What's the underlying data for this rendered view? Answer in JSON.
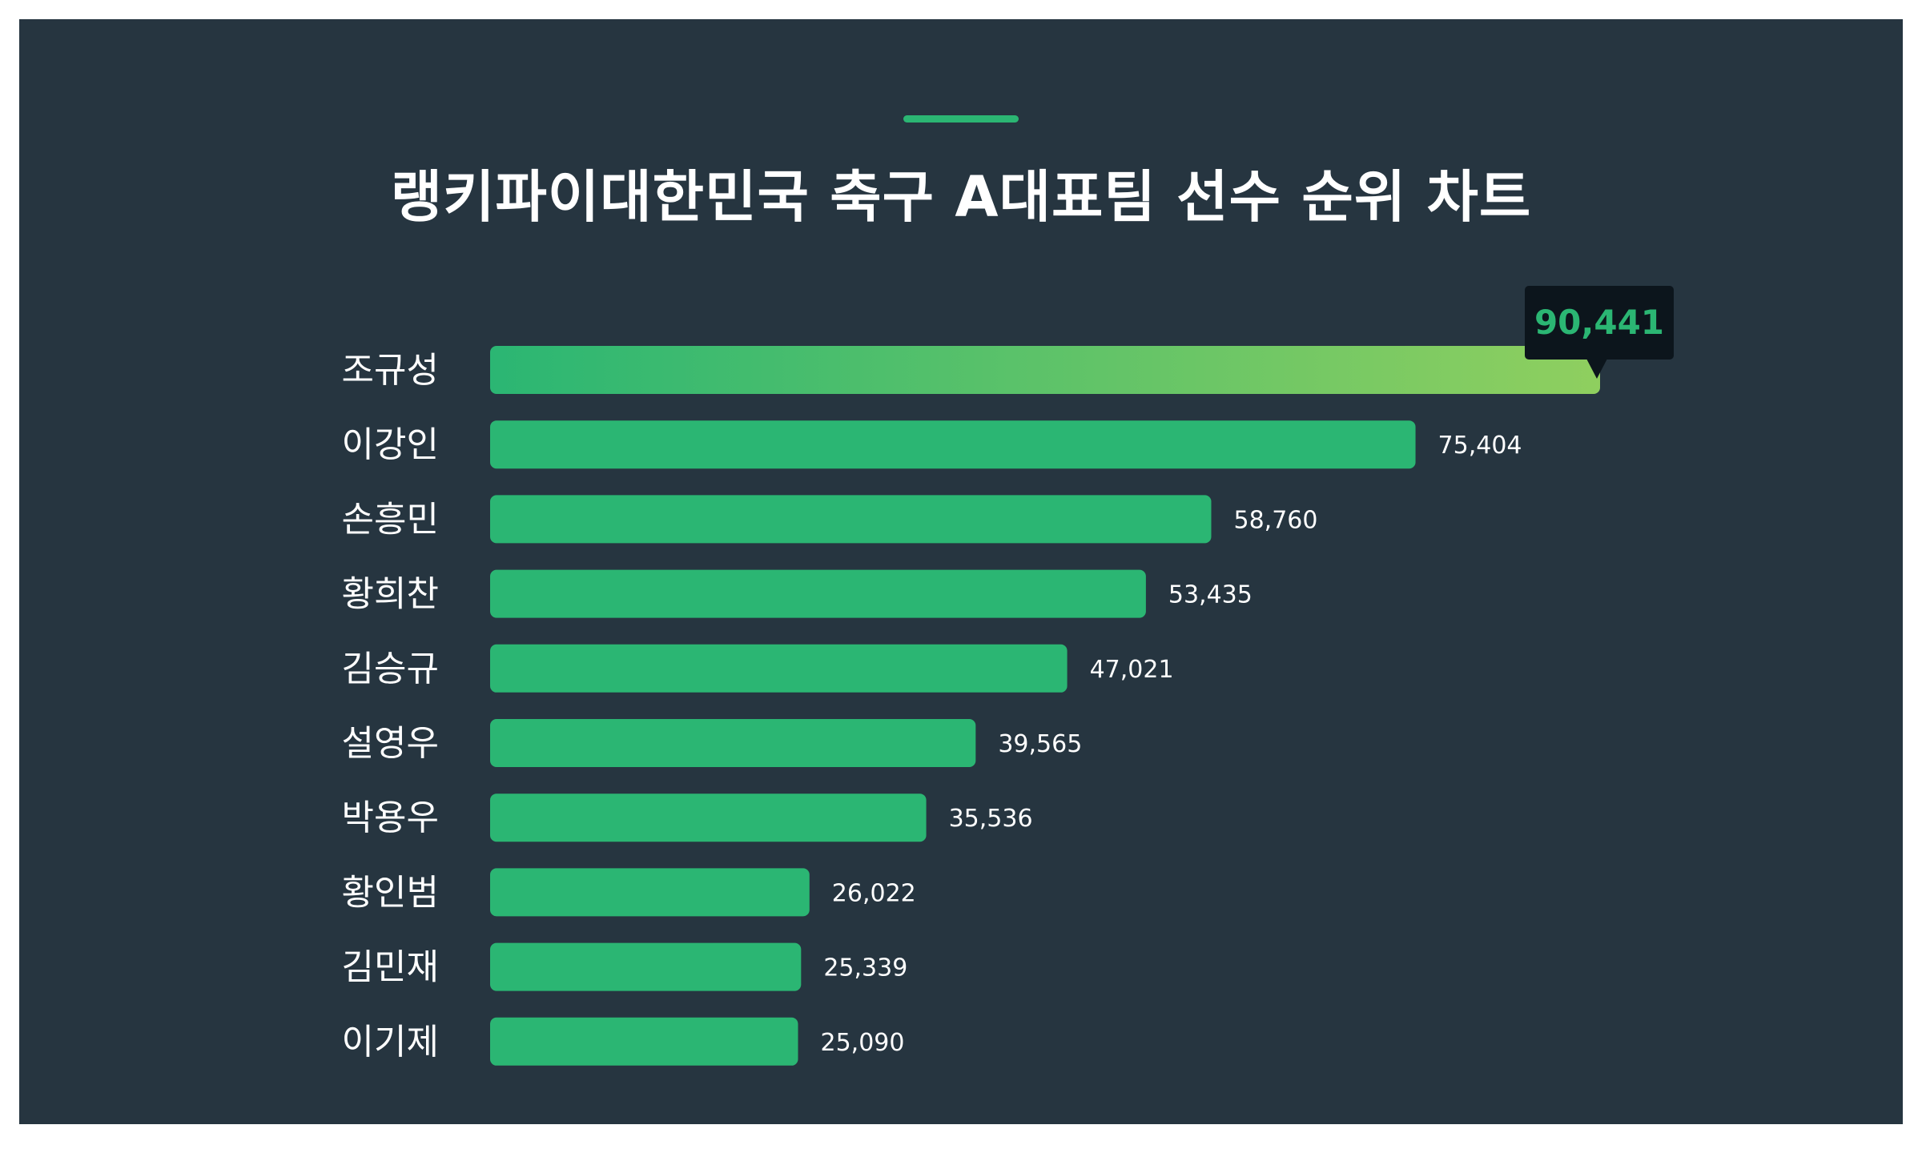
{
  "title": "랭키파이대한민국 축구 A대표팀 선수 순위 차트",
  "colors": {
    "background": "#263540",
    "bar": "#2bb673",
    "top_bar_gradient_start": "#2bb673",
    "top_bar_gradient_end": "#8fcf5f",
    "tooltip_bg": "#0c151c",
    "accent": "#2bb673"
  },
  "chart_data": {
    "type": "bar",
    "orientation": "horizontal",
    "categories": [
      "조규성",
      "이강인",
      "손흥민",
      "황희찬",
      "김승규",
      "설영우",
      "박용우",
      "황인범",
      "김민재",
      "이기제"
    ],
    "values": [
      90441,
      75404,
      58760,
      53435,
      47021,
      39565,
      35536,
      26022,
      25339,
      25090
    ],
    "value_labels": [
      "90,441",
      "75,404",
      "58,760",
      "53,435",
      "47,021",
      "39,565",
      "35,536",
      "26,022",
      "25,339",
      "25,090"
    ],
    "highlighted_index": 0,
    "xlim": [
      0,
      90441
    ],
    "grid": false,
    "legend": "none"
  }
}
